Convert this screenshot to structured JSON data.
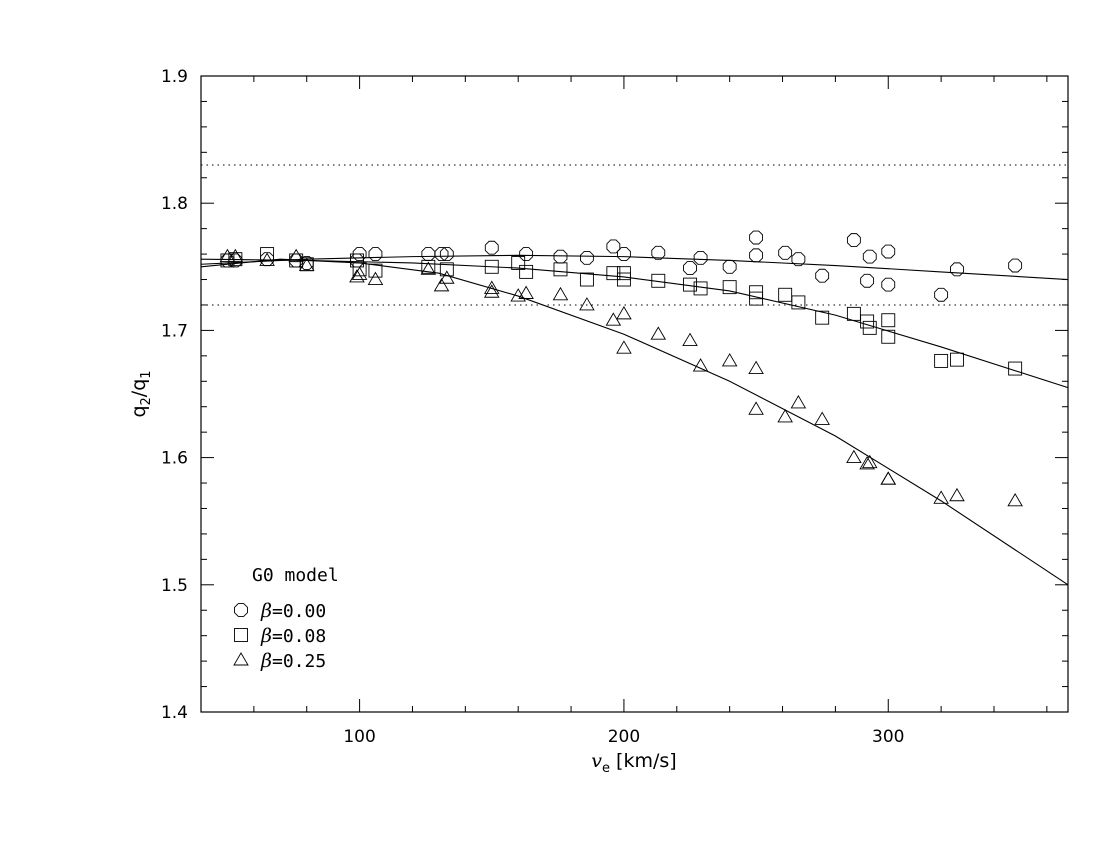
{
  "chart_data": {
    "type": "scatter",
    "title": "",
    "xlabel": "v",
    "xlabel_sub": "e",
    "xlabel_unit": " [km/s]",
    "ylabel_base": "q",
    "ylabel_sub1": "2",
    "ylabel_slash": "/q",
    "ylabel_sub2": "1",
    "xlim": [
      40,
      368
    ],
    "ylim": [
      1.4,
      1.9
    ],
    "xticks_major": [
      100,
      200,
      300
    ],
    "xticks_minor_step": 20,
    "yticks_major": [
      1.4,
      1.5,
      1.6,
      1.7,
      1.8,
      1.9
    ],
    "yticks_labels": [
      "1.4",
      "1.5",
      "1.6",
      "1.7",
      "1.8",
      "1.9"
    ],
    "yticks_minor_step": 0.02,
    "grid": false,
    "reference_lines": [
      1.83,
      1.72
    ],
    "legend": {
      "title": "G0 model",
      "placement": "bottom-left",
      "entries": [
        {
          "symbol": "circle",
          "beta_label": "β",
          "value_label": "=0.00"
        },
        {
          "symbol": "square",
          "beta_label": "β",
          "value_label": "=0.08"
        },
        {
          "symbol": "triangle",
          "beta_label": "β",
          "value_label": "=0.25"
        }
      ]
    },
    "series": [
      {
        "symbol": "circle",
        "points": [
          [
            50,
            1.755
          ],
          [
            53,
            1.755
          ],
          [
            65,
            1.756
          ],
          [
            76,
            1.755
          ],
          [
            80,
            1.753
          ],
          [
            99,
            1.755
          ],
          [
            100,
            1.76
          ],
          [
            106,
            1.76
          ],
          [
            126,
            1.76
          ],
          [
            131,
            1.76
          ],
          [
            133,
            1.76
          ],
          [
            150,
            1.765
          ],
          [
            163,
            1.76
          ],
          [
            176,
            1.758
          ],
          [
            186,
            1.757
          ],
          [
            196,
            1.766
          ],
          [
            200,
            1.76
          ],
          [
            213,
            1.761
          ],
          [
            225,
            1.749
          ],
          [
            229,
            1.757
          ],
          [
            240,
            1.75
          ],
          [
            250,
            1.773
          ],
          [
            250,
            1.759
          ],
          [
            261,
            1.761
          ],
          [
            266,
            1.756
          ],
          [
            275,
            1.743
          ],
          [
            287,
            1.771
          ],
          [
            292,
            1.739
          ],
          [
            293,
            1.758
          ],
          [
            300,
            1.762
          ],
          [
            300,
            1.736
          ],
          [
            320,
            1.728
          ],
          [
            326,
            1.748
          ],
          [
            348,
            1.751
          ]
        ],
        "fit": [
          [
            40,
            1.752
          ],
          [
            80,
            1.756
          ],
          [
            120,
            1.758
          ],
          [
            160,
            1.759
          ],
          [
            200,
            1.758
          ],
          [
            240,
            1.755
          ],
          [
            280,
            1.751
          ],
          [
            320,
            1.746
          ],
          [
            368,
            1.74
          ]
        ]
      },
      {
        "symbol": "square",
        "points": [
          [
            50,
            1.755
          ],
          [
            53,
            1.756
          ],
          [
            65,
            1.76
          ],
          [
            76,
            1.755
          ],
          [
            80,
            1.752
          ],
          [
            99,
            1.755
          ],
          [
            100,
            1.748
          ],
          [
            106,
            1.747
          ],
          [
            126,
            1.75
          ],
          [
            133,
            1.748
          ],
          [
            150,
            1.75
          ],
          [
            160,
            1.753
          ],
          [
            163,
            1.746
          ],
          [
            176,
            1.748
          ],
          [
            186,
            1.74
          ],
          [
            196,
            1.745
          ],
          [
            200,
            1.745
          ],
          [
            200,
            1.74
          ],
          [
            213,
            1.739
          ],
          [
            225,
            1.736
          ],
          [
            229,
            1.733
          ],
          [
            240,
            1.734
          ],
          [
            250,
            1.725
          ],
          [
            250,
            1.73
          ],
          [
            261,
            1.728
          ],
          [
            266,
            1.722
          ],
          [
            275,
            1.71
          ],
          [
            287,
            1.713
          ],
          [
            292,
            1.707
          ],
          [
            293,
            1.702
          ],
          [
            300,
            1.695
          ],
          [
            300,
            1.708
          ],
          [
            320,
            1.676
          ],
          [
            326,
            1.677
          ],
          [
            348,
            1.67
          ]
        ],
        "fit": [
          [
            40,
            1.756
          ],
          [
            80,
            1.755
          ],
          [
            120,
            1.753
          ],
          [
            160,
            1.749
          ],
          [
            200,
            1.742
          ],
          [
            240,
            1.731
          ],
          [
            280,
            1.712
          ],
          [
            320,
            1.687
          ],
          [
            368,
            1.655
          ]
        ]
      },
      {
        "symbol": "triangle",
        "points": [
          [
            50,
            1.758
          ],
          [
            53,
            1.758
          ],
          [
            65,
            1.755
          ],
          [
            76,
            1.758
          ],
          [
            80,
            1.751
          ],
          [
            99,
            1.742
          ],
          [
            100,
            1.744
          ],
          [
            106,
            1.74
          ],
          [
            126,
            1.748
          ],
          [
            131,
            1.735
          ],
          [
            133,
            1.741
          ],
          [
            150,
            1.73
          ],
          [
            150,
            1.733
          ],
          [
            160,
            1.727
          ],
          [
            163,
            1.729
          ],
          [
            176,
            1.728
          ],
          [
            186,
            1.72
          ],
          [
            196,
            1.708
          ],
          [
            200,
            1.713
          ],
          [
            200,
            1.686
          ],
          [
            213,
            1.697
          ],
          [
            225,
            1.692
          ],
          [
            229,
            1.672
          ],
          [
            240,
            1.676
          ],
          [
            250,
            1.67
          ],
          [
            250,
            1.638
          ],
          [
            261,
            1.632
          ],
          [
            266,
            1.643
          ],
          [
            275,
            1.63
          ],
          [
            287,
            1.6
          ],
          [
            292,
            1.595
          ],
          [
            293,
            1.596
          ],
          [
            300,
            1.583
          ],
          [
            300,
            1.583
          ],
          [
            320,
            1.568
          ],
          [
            326,
            1.57
          ],
          [
            348,
            1.566
          ]
        ],
        "fit": [
          [
            40,
            1.75
          ],
          [
            70,
            1.756
          ],
          [
            100,
            1.753
          ],
          [
            130,
            1.745
          ],
          [
            160,
            1.727
          ],
          [
            200,
            1.697
          ],
          [
            240,
            1.66
          ],
          [
            280,
            1.617
          ],
          [
            320,
            1.566
          ],
          [
            368,
            1.5
          ]
        ]
      }
    ]
  }
}
